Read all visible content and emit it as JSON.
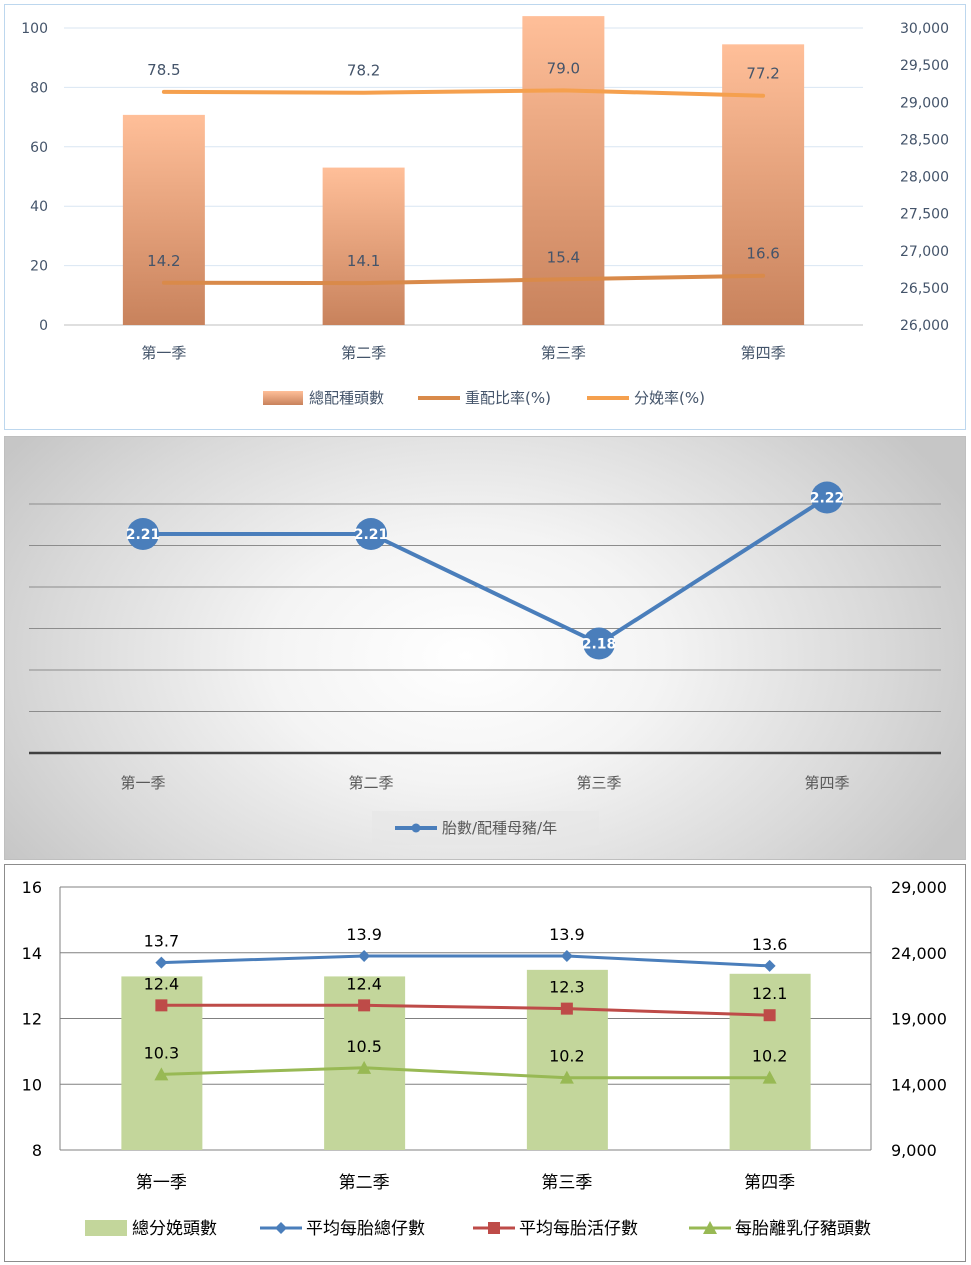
{
  "chart_data": [
    {
      "type": "bar",
      "categories": [
        "第一季",
        "第二季",
        "第三季",
        "第四季"
      ],
      "series": [
        {
          "name": "總配種頭數",
          "kind": "bar",
          "axis": "right",
          "color": "#f4b183",
          "values": [
            28830,
            28120,
            30160,
            29780
          ]
        },
        {
          "name": "重配比率(%)",
          "kind": "line",
          "axis": "left",
          "color": "#d98a4a",
          "values": [
            14.2,
            14.1,
            15.4,
            16.6
          ],
          "labels": [
            "14.2",
            "14.1",
            "15.4",
            "16.6"
          ]
        },
        {
          "name": "分娩率(%)",
          "kind": "line",
          "axis": "left",
          "color": "#f5a04e",
          "values": [
            78.5,
            78.2,
            79.0,
            77.2
          ],
          "labels": [
            "78.5",
            "78.2",
            "79.0",
            "77.2"
          ]
        }
      ],
      "left_axis": {
        "ylim": [
          0,
          100
        ],
        "ticks": [
          "0",
          "20",
          "40",
          "60",
          "80",
          "100"
        ]
      },
      "right_axis": {
        "ylim": [
          26000,
          30000
        ],
        "ticks": [
          "26,000",
          "26,500",
          "27,000",
          "27,500",
          "28,000",
          "28,500",
          "29,000",
          "29,500",
          "30,000"
        ]
      },
      "grid": true,
      "legend_position": "bottom"
    },
    {
      "type": "line",
      "categories": [
        "第一季",
        "第二季",
        "第三季",
        "第四季"
      ],
      "series": [
        {
          "name": "胎數/配種母豬/年",
          "color": "#4a7ebb",
          "values": [
            2.21,
            2.21,
            2.18,
            2.22
          ],
          "labels": [
            "2.21",
            "2.21",
            "2.18",
            "2.22"
          ]
        }
      ],
      "ylim": [
        2.15,
        2.23
      ],
      "grid": true,
      "legend_position": "bottom"
    },
    {
      "type": "bar",
      "categories": [
        "第一季",
        "第二季",
        "第三季",
        "第四季"
      ],
      "series": [
        {
          "name": "總分娩頭數",
          "kind": "bar",
          "axis": "right",
          "color": "#c3d69b",
          "values": [
            22200,
            22200,
            22700,
            22400
          ]
        },
        {
          "name": "平均每胎總仔數",
          "kind": "line",
          "marker": "diamond",
          "axis": "left",
          "color": "#4a7ebb",
          "values": [
            13.7,
            13.9,
            13.9,
            13.6
          ],
          "labels": [
            "13.7",
            "13.9",
            "13.9",
            "13.6"
          ]
        },
        {
          "name": "平均每胎活仔數",
          "kind": "line",
          "marker": "square",
          "axis": "left",
          "color": "#be4b48",
          "values": [
            12.4,
            12.4,
            12.3,
            12.1
          ],
          "labels": [
            "12.4",
            "12.4",
            "12.3",
            "12.1"
          ]
        },
        {
          "name": "每胎離乳仔豬頭數",
          "kind": "line",
          "marker": "triangle",
          "axis": "left",
          "color": "#98b954",
          "values": [
            10.3,
            10.5,
            10.2,
            10.2
          ],
          "labels": [
            "10.3",
            "10.5",
            "10.2",
            "10.2"
          ]
        }
      ],
      "left_axis": {
        "ylim": [
          8,
          16
        ],
        "ticks": [
          "8",
          "10",
          "12",
          "14",
          "16"
        ]
      },
      "right_axis": {
        "ylim": [
          9000,
          29000
        ],
        "ticks": [
          "9,000",
          "14,000",
          "19,000",
          "24,000",
          "29,000"
        ]
      },
      "grid": true,
      "legend_position": "bottom"
    }
  ]
}
